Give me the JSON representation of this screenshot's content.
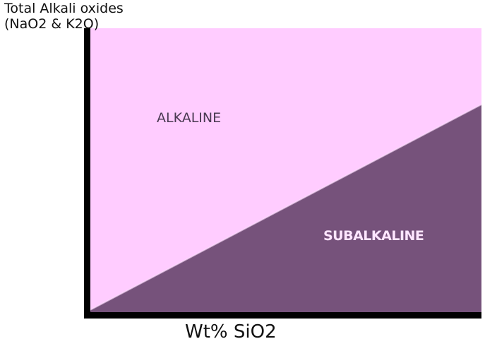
{
  "y_axis_title": {
    "line1": "Total Alkali oxides",
    "line2": "(NaO2 & K2O)"
  },
  "x_axis_title": "Wt% SiO2",
  "regions": {
    "alkaline": {
      "label": "ALKALINE"
    },
    "subalkaline": {
      "label": "SUBALKALINE"
    }
  },
  "colors": {
    "alkaline_fill": "#FFCCFF",
    "subalkaline_fill": "#76527B",
    "axis": "#000000",
    "alkaline_text": "#4A3A52",
    "subalkaline_text": "#FFE6FF",
    "divider_highlight": "#FFE0FF"
  }
}
